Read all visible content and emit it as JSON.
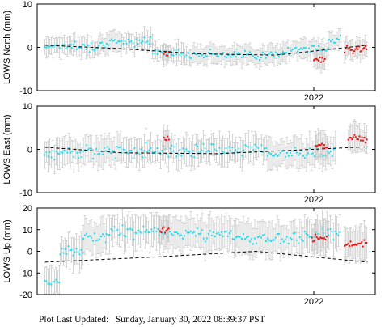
{
  "footer": {
    "label": "Plot Last Updated:",
    "timestamp": "Sunday, January 30, 2022 08:39:37 PST"
  },
  "colors": {
    "past_points": "#22ddee",
    "recent_points": "#ee1111",
    "error_bars": "#cccccc",
    "trend_line": "#000000",
    "axes": "#000000"
  },
  "chart_data": [
    {
      "type": "scatter",
      "ylabel": "LOWS North (mm)",
      "ylim": [
        -10,
        10
      ],
      "yticks": [
        10,
        0,
        -10
      ],
      "xtick_label": "2022",
      "x_unit": "years",
      "xlim": [
        2021.28,
        2022.16
      ],
      "xtick": 2022.0,
      "typical_error_mm": 2,
      "grid": false,
      "segments": [
        {
          "x0": 2021.3,
          "x1": 2021.37,
          "mean": 0.4,
          "spread": 1.4
        },
        {
          "x0": 2021.37,
          "x1": 2021.44,
          "mean": 0.2,
          "spread": 1.6
        },
        {
          "x0": 2021.44,
          "x1": 2021.5,
          "mean": 1.0,
          "spread": 1.6
        },
        {
          "x0": 2021.5,
          "x1": 2021.58,
          "mean": 1.4,
          "spread": 1.8
        },
        {
          "x0": 2021.58,
          "x1": 2021.68,
          "mean": -1.2,
          "spread": 1.4
        },
        {
          "x0": 2021.68,
          "x1": 2021.8,
          "mean": -1.6,
          "spread": 1.4
        },
        {
          "x0": 2021.8,
          "x1": 2021.92,
          "mean": -1.8,
          "spread": 1.4
        },
        {
          "x0": 2021.92,
          "x1": 2022.04,
          "mean": -0.5,
          "spread": 1.8
        },
        {
          "x0": 2022.04,
          "x1": 2022.07,
          "mean": 1.8,
          "spread": 1.6
        }
      ],
      "recent_segments": [
        {
          "x0": 2021.61,
          "x1": 2021.625,
          "mean": -1.5,
          "spread": 0.8
        },
        {
          "x0": 2022.0,
          "x1": 2022.03,
          "mean": -2.8,
          "spread": 1.0
        },
        {
          "x0": 2022.08,
          "x1": 2022.14,
          "mean": -0.5,
          "spread": 1.2
        }
      ],
      "trend": [
        {
          "x": 2021.3,
          "y": 0.5
        },
        {
          "x": 2021.5,
          "y": -0.3
        },
        {
          "x": 2021.7,
          "y": -1.5
        },
        {
          "x": 2021.9,
          "y": -1.8
        },
        {
          "x": 2022.14,
          "y": 0.5
        }
      ]
    },
    {
      "type": "scatter",
      "ylabel": "LOWS East (mm)",
      "ylim": [
        -10,
        10
      ],
      "yticks": [
        10,
        0,
        -10
      ],
      "xtick_label": "2022",
      "x_unit": "years",
      "xlim": [
        2021.28,
        2022.16
      ],
      "xtick": 2022.0,
      "typical_error_mm": 3,
      "grid": false,
      "segments": [
        {
          "x0": 2021.3,
          "x1": 2021.35,
          "mean": -1.0,
          "spread": 2.0
        },
        {
          "x0": 2021.35,
          "x1": 2021.5,
          "mean": -0.5,
          "spread": 2.2
        },
        {
          "x0": 2021.5,
          "x1": 2021.7,
          "mean": -0.2,
          "spread": 2.2
        },
        {
          "x0": 2021.7,
          "x1": 2021.88,
          "mean": 0.0,
          "spread": 2.0
        },
        {
          "x0": 2021.88,
          "x1": 2022.06,
          "mean": -1.0,
          "spread": 2.2
        }
      ],
      "recent_segments": [
        {
          "x0": 2021.61,
          "x1": 2021.625,
          "mean": 2.5,
          "spread": 1.0
        },
        {
          "x0": 2022.005,
          "x1": 2022.035,
          "mean": 1.0,
          "spread": 1.0
        },
        {
          "x0": 2022.09,
          "x1": 2022.14,
          "mean": 2.6,
          "spread": 1.2
        }
      ],
      "trend": [
        {
          "x": 2021.3,
          "y": 0.5
        },
        {
          "x": 2021.5,
          "y": -0.8
        },
        {
          "x": 2021.75,
          "y": -1.0
        },
        {
          "x": 2022.14,
          "y": 0.6
        }
      ]
    },
    {
      "type": "scatter",
      "ylabel": "LOWS Up (mm)",
      "ylim": [
        -20,
        20
      ],
      "yticks": [
        20,
        10,
        0,
        -10,
        -20
      ],
      "xtick_label": "2022",
      "x_unit": "years",
      "xlim": [
        2021.28,
        2022.16
      ],
      "xtick": 2022.0,
      "typical_error_mm": 7,
      "grid": false,
      "segments": [
        {
          "x0": 2021.3,
          "x1": 2021.34,
          "mean": -14.0,
          "spread": 3.0
        },
        {
          "x0": 2021.34,
          "x1": 2021.4,
          "mean": 0.0,
          "spread": 4.0
        },
        {
          "x0": 2021.4,
          "x1": 2021.46,
          "mean": 6.0,
          "spread": 4.0
        },
        {
          "x0": 2021.46,
          "x1": 2021.6,
          "mean": 9.0,
          "spread": 4.0
        },
        {
          "x0": 2021.6,
          "x1": 2021.8,
          "mean": 8.0,
          "spread": 4.0
        },
        {
          "x0": 2021.8,
          "x1": 2021.98,
          "mean": 6.0,
          "spread": 4.5
        },
        {
          "x0": 2021.98,
          "x1": 2022.07,
          "mean": 8.0,
          "spread": 4.0
        }
      ],
      "recent_segments": [
        {
          "x0": 2021.6,
          "x1": 2021.625,
          "mean": 10.0,
          "spread": 2.0
        },
        {
          "x0": 2021.995,
          "x1": 2022.035,
          "mean": 6.0,
          "spread": 3.0
        },
        {
          "x0": 2022.08,
          "x1": 2022.14,
          "mean": 3.0,
          "spread": 2.5
        }
      ],
      "trend": [
        {
          "x": 2021.3,
          "y": -5.0
        },
        {
          "x": 2021.6,
          "y": -2.5
        },
        {
          "x": 2021.85,
          "y": 0.0
        },
        {
          "x": 2022.14,
          "y": -5.0
        }
      ]
    }
  ]
}
